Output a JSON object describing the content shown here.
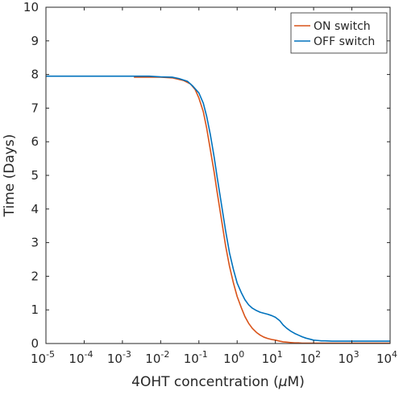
{
  "chart_data": {
    "type": "line",
    "title": "",
    "xlabel_main": "4OHT concentration (",
    "xlabel_symbol": "μ",
    "xlabel_unit": "M)",
    "ylabel": "Time (Days)",
    "xscale": "log",
    "xlim": [
      1e-05,
      10000
    ],
    "ylim": [
      0,
      10
    ],
    "grid": false,
    "legend_position": "top-right",
    "x_ticks": [
      {
        "base": "10",
        "exp": "-5",
        "value": 1e-05
      },
      {
        "base": "10",
        "exp": "-4",
        "value": 0.0001
      },
      {
        "base": "10",
        "exp": "-3",
        "value": 0.001
      },
      {
        "base": "10",
        "exp": "-2",
        "value": 0.01
      },
      {
        "base": "10",
        "exp": "-1",
        "value": 0.1
      },
      {
        "base": "10",
        "exp": "0",
        "value": 1
      },
      {
        "base": "10",
        "exp": "1",
        "value": 10
      },
      {
        "base": "10",
        "exp": "2",
        "value": 100
      },
      {
        "base": "10",
        "exp": "3",
        "value": 1000
      },
      {
        "base": "10",
        "exp": "4",
        "value": 10000
      }
    ],
    "y_ticks": [
      "0",
      "1",
      "2",
      "3",
      "4",
      "5",
      "6",
      "7",
      "8",
      "9",
      "10"
    ],
    "series": [
      {
        "name": "ON switch",
        "color": "#d95319",
        "x": [
          0.002,
          0.01,
          0.02,
          0.04,
          0.06,
          0.08,
          0.1,
          0.13,
          0.16,
          0.2,
          0.25,
          0.3,
          0.4,
          0.5,
          0.63,
          0.8,
          1,
          1.3,
          1.6,
          2,
          2.5,
          3.2,
          4,
          5,
          6.3,
          8,
          10,
          13,
          16,
          20,
          25,
          32,
          40,
          50,
          63,
          80,
          100,
          1000,
          10000
        ],
        "y": [
          7.92,
          7.92,
          7.9,
          7.82,
          7.72,
          7.55,
          7.3,
          6.9,
          6.4,
          5.75,
          5.1,
          4.5,
          3.6,
          2.9,
          2.3,
          1.8,
          1.4,
          1.05,
          0.8,
          0.6,
          0.45,
          0.33,
          0.25,
          0.19,
          0.15,
          0.12,
          0.1,
          0.07,
          0.05,
          0.04,
          0.03,
          0.02,
          0.02,
          0.01,
          0.01,
          0.01,
          0.01,
          0.01,
          0.01
        ]
      },
      {
        "name": "OFF switch",
        "color": "#0072bd",
        "x": [
          1e-05,
          0.0001,
          0.001,
          0.005,
          0.01,
          0.02,
          0.03,
          0.05,
          0.07,
          0.1,
          0.13,
          0.16,
          0.2,
          0.25,
          0.3,
          0.4,
          0.5,
          0.63,
          0.8,
          1,
          1.3,
          1.6,
          2,
          2.5,
          3.2,
          4,
          5,
          6.3,
          8,
          10,
          13,
          16,
          20,
          25,
          32,
          40,
          50,
          63,
          80,
          100,
          130,
          160,
          200,
          300,
          500,
          1000,
          10000
        ],
        "y": [
          7.95,
          7.95,
          7.95,
          7.95,
          7.93,
          7.92,
          7.88,
          7.8,
          7.65,
          7.45,
          7.15,
          6.75,
          6.2,
          5.55,
          4.95,
          4.05,
          3.35,
          2.7,
          2.2,
          1.8,
          1.5,
          1.3,
          1.15,
          1.05,
          0.98,
          0.93,
          0.9,
          0.87,
          0.83,
          0.78,
          0.68,
          0.55,
          0.45,
          0.37,
          0.3,
          0.25,
          0.2,
          0.16,
          0.13,
          0.1,
          0.09,
          0.08,
          0.08,
          0.07,
          0.07,
          0.07,
          0.07
        ]
      }
    ]
  }
}
